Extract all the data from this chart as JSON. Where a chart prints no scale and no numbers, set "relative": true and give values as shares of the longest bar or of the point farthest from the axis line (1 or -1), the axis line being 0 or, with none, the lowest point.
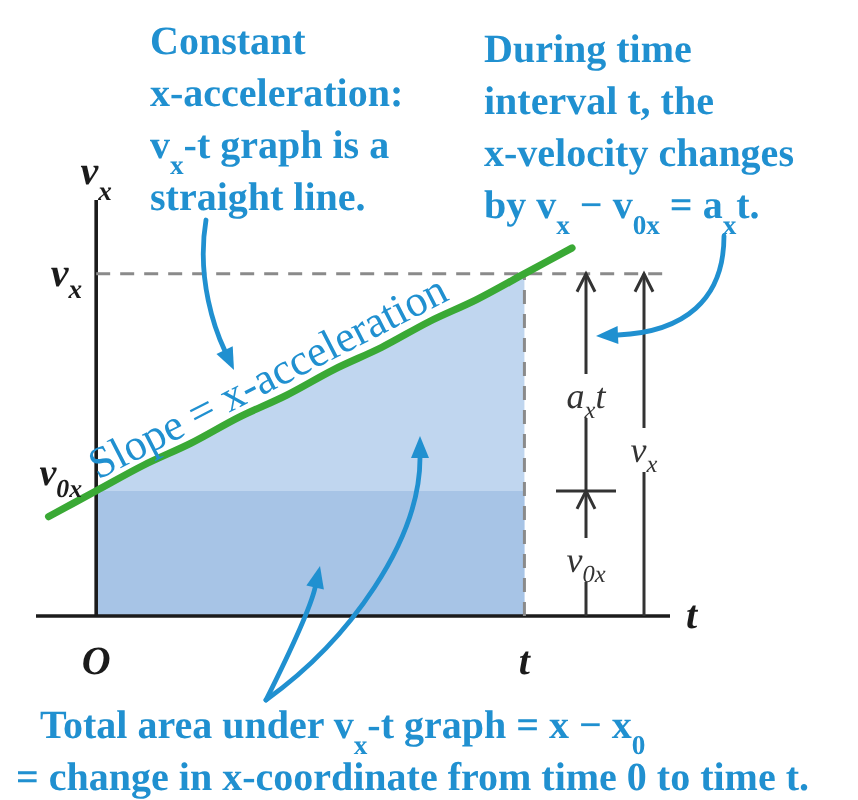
{
  "chart_data": {
    "type": "area",
    "relative": true,
    "xlabel": "t",
    "ylabel": "v$_{x}$",
    "categories": [
      null,
      "O",
      null,
      null,
      null,
      null,
      null,
      null,
      null,
      null,
      "t",
      null
    ],
    "series": [
      {
        "color": "#c0d6ef",
        "values": [
          null,
          0.34,
          0.41,
          0.47,
          0.54,
          0.6,
          0.67,
          0.73,
          0.8,
          0.86,
          0.93,
          null
        ]
      },
      {
        "color": "#a7c4e6",
        "values": [
          null,
          0.34,
          0.34,
          0.34,
          0.34,
          0.34,
          0.34,
          0.34,
          0.34,
          0.34,
          0.34,
          null
        ]
      },
      {
        "type": "line",
        "color": "#3aa935",
        "values": [
          0.27,
          0.34,
          0.41,
          0.47,
          0.54,
          0.6,
          0.67,
          0.73,
          0.8,
          0.86,
          0.93,
          1
        ]
      }
    ],
    "ref_lines": [
      {
        "axis": "y",
        "value": 0.93,
        "label": "v$_{x}$",
        "color": "#8a8a8a",
        "line_style": "dashed"
      },
      {
        "axis": "x",
        "value": "t",
        "color": "#8a8a8a",
        "line_style": "dashed"
      }
    ],
    "annotations": [
      "Constant\nx-acceleration:\nv$_{x}$-t graph is a\nstraight line.",
      "During time\ninterval t, the\nx-velocity changes\nby v$_{x}$ − v$_{0x}$ = a$_{x}$t.",
      "Slope = x-acceleration",
      "a$_{x}$t",
      "v$_{0x}$",
      "v$_{x}$",
      "v$_{0x}$",
      "Total area under v$_{x}$-t graph = x − x$_{0}$\n= change in x-coordinate from time 0 to time t."
    ]
  }
}
